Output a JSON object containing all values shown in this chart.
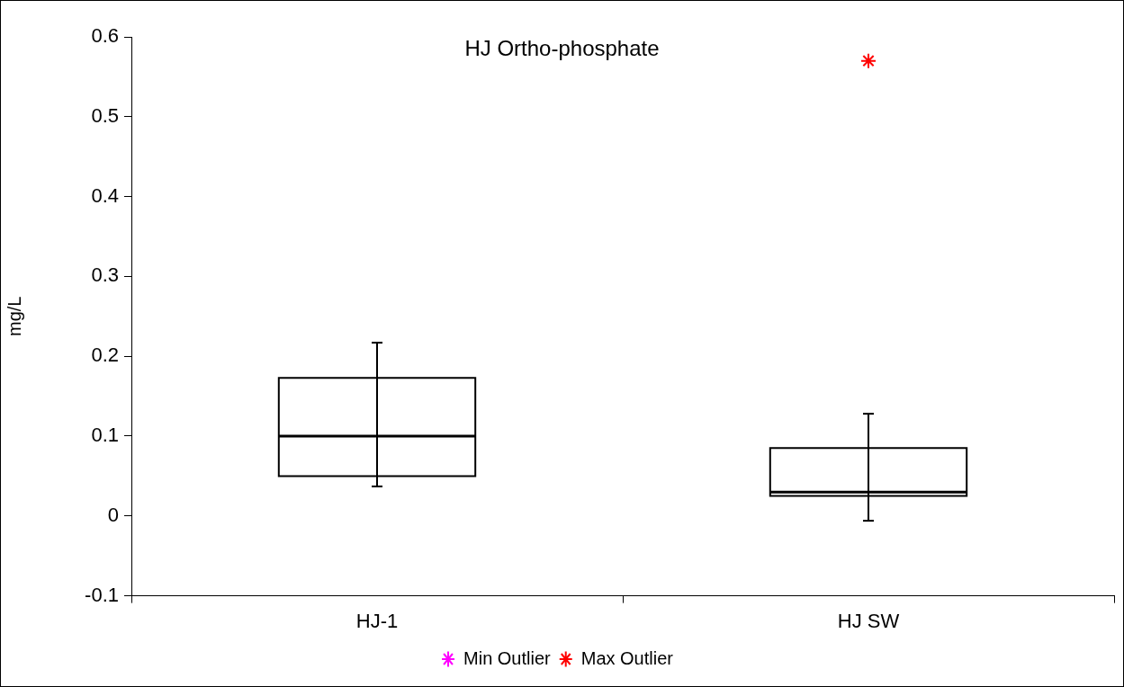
{
  "chart_data": {
    "type": "box",
    "title": "HJ Ortho-phosphate",
    "ylabel": "mg/L",
    "categories": [
      "HJ-1",
      "HJ SW"
    ],
    "boxes": [
      {
        "low": 0.037,
        "q1": 0.05,
        "median": 0.1,
        "q3": 0.173,
        "high": 0.217
      },
      {
        "low": -0.006,
        "q1": 0.025,
        "median": 0.03,
        "q3": 0.085,
        "high": 0.128
      }
    ],
    "ylim": [
      -0.1,
      0.6
    ],
    "yticks": [
      -0.1,
      0,
      0.1,
      0.2,
      0.3,
      0.4,
      0.5,
      0.6
    ],
    "grid": false,
    "legend": "bottom",
    "marker": "cross",
    "series": [
      {
        "name": "Min Outlier",
        "type": "scatter",
        "color": "#ff00ff",
        "x": [
          "HJ-1",
          "HJ SW"
        ],
        "values": [
          null,
          null
        ]
      },
      {
        "name": "Max Outlier",
        "type": "scatter",
        "color": "#ff0000",
        "x": [
          "HJ-1",
          "HJ SW"
        ],
        "values": [
          null,
          0.57
        ]
      }
    ]
  }
}
